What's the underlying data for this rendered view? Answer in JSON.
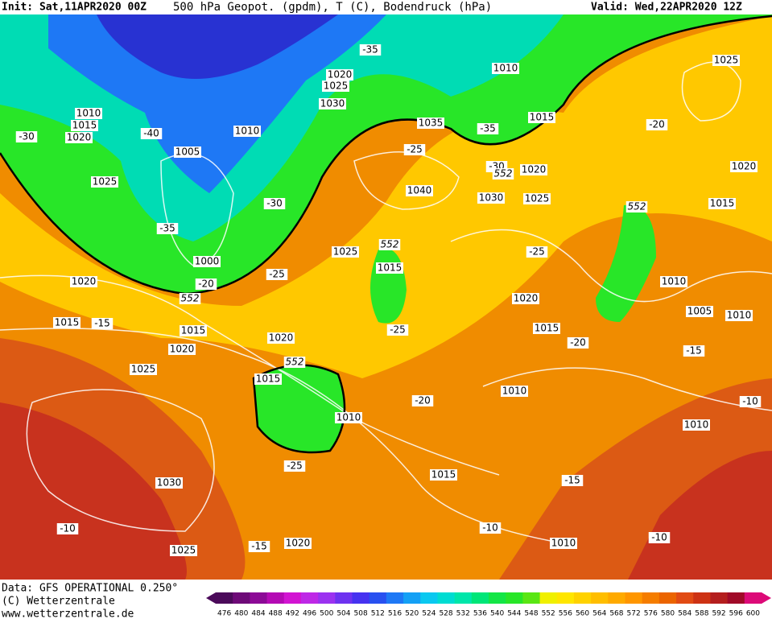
{
  "header": {
    "init": "Init: Sat,11APR2020 00Z",
    "title": "500 hPa Geopot. (gpdm), T (C), Bodendruck (hPa)",
    "valid": "Valid: Wed,22APR2020 12Z"
  },
  "footer": {
    "data": "Data: GFS OPERATIONAL 0.250°",
    "copyright": "(C) Wetterzentrale",
    "url": "www.wetterzentrale.de"
  },
  "colorbar": {
    "levels": [
      476,
      480,
      484,
      488,
      492,
      496,
      500,
      504,
      508,
      512,
      516,
      520,
      524,
      528,
      532,
      536,
      540,
      544,
      548,
      552,
      556,
      560,
      564,
      568,
      572,
      576,
      580,
      584,
      588,
      592,
      596,
      600
    ],
    "colors": [
      "#4b0a5a",
      "#6e0a78",
      "#8c0a96",
      "#b40ab4",
      "#d214d2",
      "#be28e6",
      "#9b32f0",
      "#6e32f0",
      "#4632f0",
      "#2850f0",
      "#1e78f5",
      "#14a0f5",
      "#0ac8f0",
      "#00dcd2",
      "#00e6aa",
      "#00e678",
      "#14e646",
      "#28e628",
      "#5ae614",
      "#f0f000",
      "#ffe600",
      "#ffd200",
      "#ffbe00",
      "#ffaa00",
      "#ff9600",
      "#f57d00",
      "#eb6400",
      "#e14b14",
      "#cd3214",
      "#b41e1e",
      "#a00a28",
      "#dc0a78"
    ]
  },
  "map": {
    "labels": [
      "1010",
      "1015",
      "1020",
      "-30",
      "-40",
      "1025",
      "1005",
      "1010",
      "1020",
      "1025",
      "1030",
      "-35",
      "1010",
      "1035",
      "-35",
      "1015",
      "-25",
      "-30",
      "1020",
      "1040",
      "1030",
      "1025",
      "552",
      "-30",
      "-35",
      "1000",
      "-20",
      "552",
      "1020",
      "-25",
      "1025",
      "552",
      "1015",
      "1015",
      "-15",
      "1015",
      "1020",
      "1020",
      "-25",
      "552",
      "1015",
      "1010",
      "-20",
      "1025",
      "-25",
      "1030",
      "1015",
      "-15",
      "-10",
      "-10",
      "1010",
      "-10",
      "-15",
      "1020",
      "1025",
      "1025",
      "-20",
      "1020",
      "1015",
      "552",
      "-25",
      "1020",
      "1015",
      "-20",
      "1010",
      "1005",
      "1010",
      "-15",
      "1010",
      "-10",
      "1010"
    ]
  }
}
